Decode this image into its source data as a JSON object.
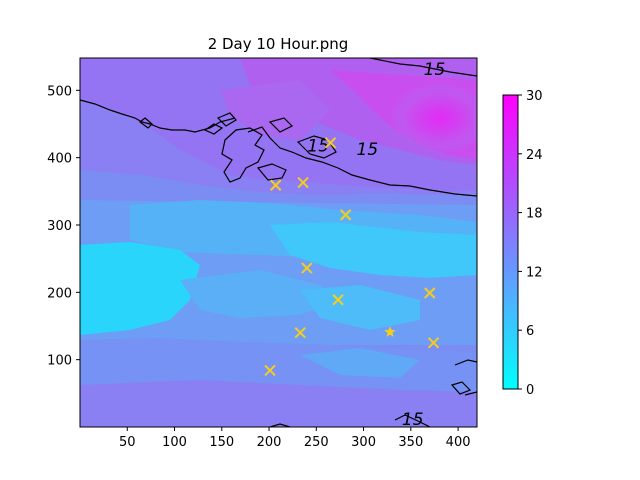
{
  "chart_data": {
    "type": "heatmap",
    "title": "2 Day 10 Hour.png",
    "xlabel": "",
    "ylabel": "",
    "xlim": [
      0,
      420
    ],
    "ylim": [
      0,
      548
    ],
    "xticks": [
      50,
      100,
      150,
      200,
      250,
      300,
      350,
      400
    ],
    "yticks": [
      100,
      200,
      300,
      400,
      500
    ],
    "colorbar": {
      "ticks": [
        0,
        6,
        12,
        18,
        24,
        30
      ],
      "range": [
        0,
        30
      ],
      "colormap": "cool"
    },
    "contour_level": 15,
    "contour_labels": [
      {
        "x": 375,
        "y": 532,
        "text": "15"
      },
      {
        "x": 252,
        "y": 418,
        "text": "15"
      },
      {
        "x": 304,
        "y": 413,
        "text": "15"
      },
      {
        "x": 352,
        "y": 12,
        "text": "15"
      }
    ],
    "markers_x": [
      {
        "x": 265,
        "y": 422
      },
      {
        "x": 207,
        "y": 359
      },
      {
        "x": 236,
        "y": 363
      },
      {
        "x": 281,
        "y": 315
      },
      {
        "x": 240,
        "y": 236
      },
      {
        "x": 273,
        "y": 189
      },
      {
        "x": 370,
        "y": 199
      },
      {
        "x": 233,
        "y": 140
      },
      {
        "x": 374,
        "y": 125
      },
      {
        "x": 201,
        "y": 84
      }
    ],
    "markers_star": [
      {
        "x": 328,
        "y": 141
      }
    ],
    "marker_color": "#f5cd1f"
  }
}
